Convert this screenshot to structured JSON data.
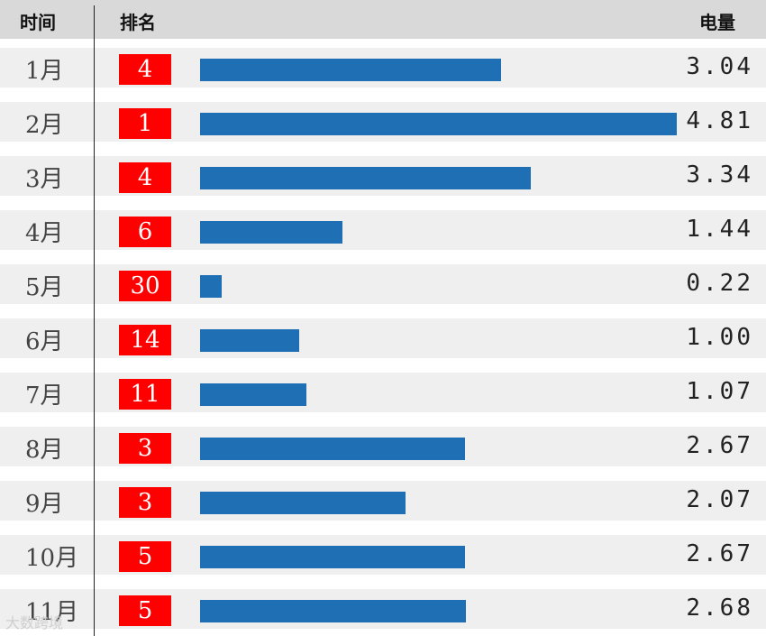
{
  "header": {
    "col_time": "时间",
    "col_rank": "排名",
    "col_value": "电量"
  },
  "colors": {
    "header_bg": "#d9d9d9",
    "row_bg": "#efefef",
    "rank_bg": "#ff0000",
    "bar": "#1f6fb5"
  },
  "watermark": "大数跨境",
  "chart_data": {
    "type": "bar",
    "orientation": "horizontal",
    "categories": [
      "1月",
      "2月",
      "3月",
      "4月",
      "5月",
      "6月",
      "7月",
      "8月",
      "9月",
      "10月",
      "11月"
    ],
    "ranks": [
      "4",
      "1",
      "4",
      "6",
      "30",
      "14",
      "11",
      "3",
      "3",
      "5",
      "5"
    ],
    "values": [
      3.04,
      4.81,
      3.34,
      1.44,
      0.22,
      1.0,
      1.07,
      2.67,
      2.07,
      2.67,
      2.68
    ],
    "value_labels": [
      "3.04",
      "4.81",
      "3.34",
      "1.44",
      "0.22",
      "1.00",
      "1.07",
      "2.67",
      "2.07",
      "2.67",
      "2.68"
    ],
    "xlim": [
      0,
      4.81
    ]
  }
}
